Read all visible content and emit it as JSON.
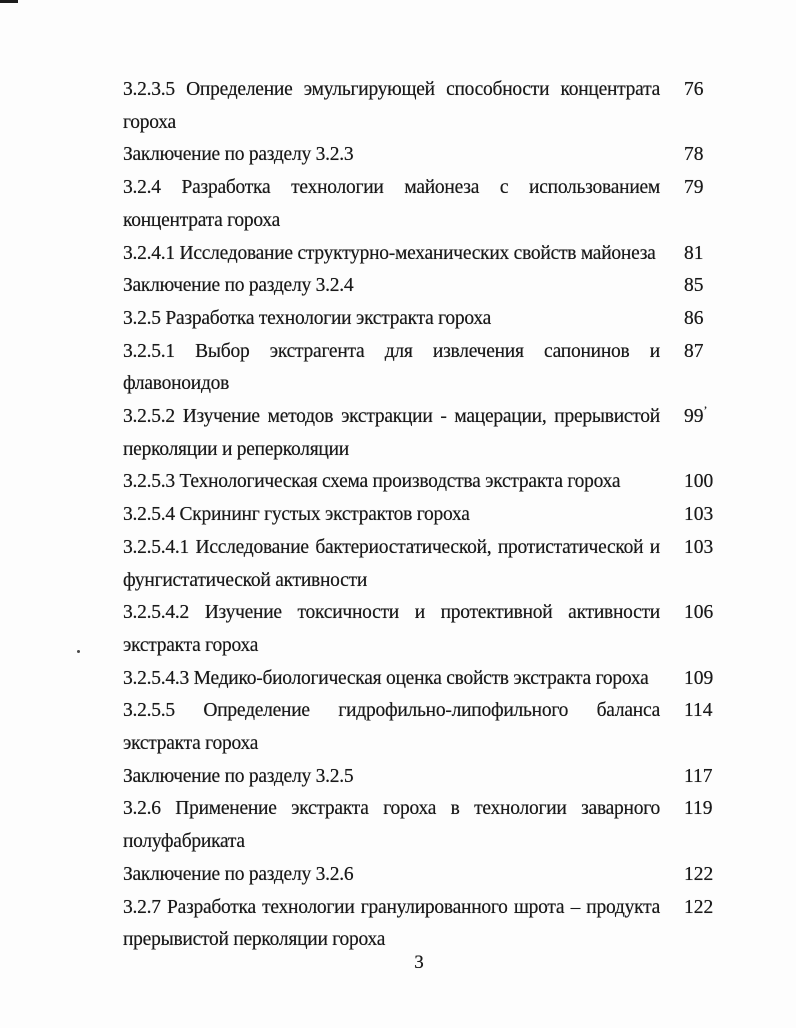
{
  "colors": {
    "paper": "#fdfdfd",
    "ink": "#1a1a1a"
  },
  "toc": {
    "entries": [
      {
        "label": "3.2.3.5 Определение эмульгирующей способности концентрата гороха",
        "page": "76"
      },
      {
        "label": "Заключение по разделу 3.2.3",
        "page": "78"
      },
      {
        "label": "3.2.4 Разработка технологии майонеза с использованием концентрата гороха",
        "page": "79"
      },
      {
        "label": "3.2.4.1 Исследование структурно-механических свойств майонеза",
        "page": "81"
      },
      {
        "label": "Заключение по разделу 3.2.4",
        "page": "85"
      },
      {
        "label": "3.2.5 Разработка технологии экстракта гороха",
        "page": "86"
      },
      {
        "label": "3.2.5.1 Выбор экстрагента для извлечения сапонинов и флавоноидов",
        "page": "87"
      },
      {
        "label": "3.2.5.2 Изучение методов экстракции - мацерации, прерывистой перколяции и реперколяции",
        "page": "99",
        "suffix": "ʼ"
      },
      {
        "label": "3.2.5.3 Технологическая схема производства экстракта гороха",
        "page": "100"
      },
      {
        "label": "3.2.5.4 Скрининг густых экстрактов гороха",
        "page": "103"
      },
      {
        "label": "3.2.5.4.1 Исследование бактериостатической, протистатической и фунгистатической активности",
        "page": "103"
      },
      {
        "label": "3.2.5.4.2 Изучение токсичности и протективной активности экстракта гороха",
        "page": "106"
      },
      {
        "label": "3.2.5.4.3 Медико-биологическая оценка свойств экстракта гороха",
        "page": "109"
      },
      {
        "label": "3.2.5.5 Определение гидрофильно-липофильного баланса экстракта гороха",
        "page": "114"
      },
      {
        "label": "Заключение по разделу 3.2.5",
        "page": "117"
      },
      {
        "label": "3.2.6 Применение экстракта гороха в технологии заварного полуфабриката",
        "page": "119"
      },
      {
        "label": "Заключение по разделу 3.2.6",
        "page": "122"
      },
      {
        "label": "3.2.7 Разработка технологии гранулированного шрота – продукта прерывистой перколяции гороха",
        "page": "122"
      }
    ]
  },
  "footer": {
    "page_number": "3"
  }
}
